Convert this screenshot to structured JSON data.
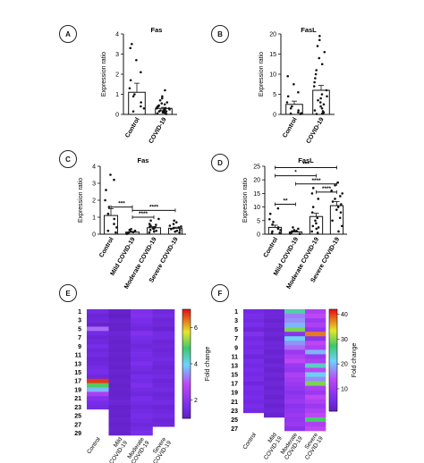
{
  "panels": {
    "A": "A",
    "B": "B",
    "C": "C",
    "D": "D",
    "E": "E",
    "F": "F"
  },
  "chart_data": [
    {
      "panel": "A",
      "type": "bar",
      "title": "Fas",
      "ylabel": "Expression ratio",
      "ylim": [
        0,
        4
      ],
      "yticks": [
        0,
        1,
        2,
        3,
        4
      ],
      "categories": [
        "Control",
        "COVID-19"
      ],
      "values": [
        1.1,
        0.3
      ],
      "errors": [
        0.45,
        0.05
      ],
      "points": [
        [
          3.5,
          3.3,
          2.7,
          2.1,
          1.7,
          1.3,
          1.0,
          0.9,
          0.6,
          0.4,
          0.3,
          0.15
        ],
        [
          1.2,
          0.9,
          0.8,
          0.7,
          0.6,
          0.55,
          0.5,
          0.45,
          0.4,
          0.4,
          0.35,
          0.3,
          0.3,
          0.25,
          0.25,
          0.2,
          0.2,
          0.15,
          0.15,
          0.1,
          0.1,
          0.05,
          0.05,
          0.02,
          0.3,
          0.2,
          0.15,
          0.1
        ]
      ]
    },
    {
      "panel": "B",
      "type": "bar",
      "title": "FasL",
      "ylabel": "Expression ratio",
      "ylim": [
        0,
        20
      ],
      "yticks": [
        0,
        5,
        10,
        15,
        20
      ],
      "categories": [
        "Control",
        "COVID-19"
      ],
      "values": [
        2.5,
        6.0
      ],
      "errors": [
        0.8,
        1.2
      ],
      "points": [
        [
          9.5,
          7.5,
          5.5,
          4.5,
          3.0,
          2.0,
          1.5,
          1.0,
          0.5,
          0.3,
          0.2,
          0.1
        ],
        [
          19.5,
          18.5,
          17,
          15.5,
          14,
          12.5,
          11,
          10,
          9,
          8,
          7,
          6,
          5,
          4.5,
          4,
          3.5,
          3,
          2.5,
          2,
          1.5,
          1,
          0.8,
          0.5,
          0.3,
          0.2,
          0.1
        ]
      ]
    },
    {
      "panel": "C",
      "type": "bar",
      "title": "Fas",
      "ylabel": "Expression ratio",
      "ylim": [
        0,
        4
      ],
      "yticks": [
        0,
        1,
        2,
        3,
        4
      ],
      "categories": [
        "Control",
        "Mild COVID-19",
        "Moderate COVID-19",
        "Severe COVID-19"
      ],
      "values": [
        1.1,
        0.12,
        0.38,
        0.35
      ],
      "errors": [
        0.4,
        0.04,
        0.07,
        0.06
      ],
      "points": [
        [
          3.5,
          3.2,
          2.6,
          2.0,
          1.6,
          1.2,
          0.9,
          0.6,
          0.4,
          0.2,
          0.1
        ],
        [
          0.3,
          0.25,
          0.2,
          0.15,
          0.12,
          0.1,
          0.08,
          0.05,
          0.03,
          0.02
        ],
        [
          0.9,
          0.8,
          0.6,
          0.55,
          0.5,
          0.45,
          0.4,
          0.35,
          0.3,
          0.25,
          0.2,
          0.15,
          0.1
        ],
        [
          0.8,
          0.7,
          0.6,
          0.5,
          0.45,
          0.4,
          0.35,
          0.3,
          0.25,
          0.2,
          0.15,
          0.1
        ]
      ],
      "brackets": [
        {
          "from": 0,
          "to": 1,
          "y": 1.6,
          "label": "***"
        },
        {
          "from": 1,
          "to": 3,
          "y": 1.4,
          "label": "****"
        },
        {
          "from": 1,
          "to": 2,
          "y": 1.0,
          "label": "****"
        }
      ]
    },
    {
      "panel": "D",
      "type": "bar",
      "title": "FasL",
      "ylabel": "Expression ratio",
      "ylim": [
        0,
        25
      ],
      "yticks": [
        0,
        5,
        10,
        15,
        20,
        25
      ],
      "categories": [
        "Control",
        "Mild COVID-19",
        "Moderate COVID-19",
        "Severe COVID-19"
      ],
      "values": [
        2.5,
        0.8,
        6.5,
        10.5
      ],
      "errors": [
        0.8,
        0.2,
        1.2,
        1.5
      ],
      "points": [
        [
          9.5,
          7.5,
          5.5,
          4.5,
          3.5,
          2.5,
          2,
          1.5,
          1,
          0.5,
          0.3
        ],
        [
          2.5,
          2,
          1.5,
          1.2,
          1,
          0.8,
          0.5,
          0.3,
          0.2,
          0.1
        ],
        [
          17,
          15,
          13,
          10,
          8,
          6,
          5,
          4,
          3,
          2.5,
          2,
          1,
          0.5
        ],
        [
          19,
          18,
          16,
          15,
          14,
          13,
          12,
          11,
          10,
          9,
          8,
          6,
          5,
          3,
          1
        ]
      ],
      "brackets": [
        {
          "from": 0,
          "to": 3,
          "y": 24.5,
          "label": "***"
        },
        {
          "from": 0,
          "to": 2,
          "y": 21.5,
          "label": "*"
        },
        {
          "from": 1,
          "to": 3,
          "y": 18.5,
          "label": "****"
        },
        {
          "from": 2,
          "to": 3,
          "y": 15.5,
          "label": "****"
        },
        {
          "from": 0,
          "to": 1,
          "y": 11,
          "label": "**"
        }
      ]
    },
    {
      "panel": "E",
      "type": "heatmap",
      "columns": [
        "Control",
        "Mild COVID-19",
        "Moderate COVID-19",
        "Severe COVID-19"
      ],
      "row_labels": [
        "1",
        "3",
        "5",
        "7",
        "9",
        "11",
        "13",
        "15",
        "17",
        "19",
        "21",
        "23",
        "25",
        "27",
        "29"
      ],
      "rows": 29,
      "colorbar_label": "Fold change",
      "colorbar_ticks": [
        2,
        4,
        6
      ],
      "vmin": 1,
      "vmax": 7,
      "values": [
        [
          1.6,
          1.2,
          1.8,
          1.5
        ],
        [
          1.4,
          1.1,
          1.9,
          1.6
        ],
        [
          1.5,
          1.3,
          1.7,
          1.4
        ],
        [
          1.3,
          1.2,
          1.6,
          1.5
        ],
        [
          3.2,
          1.2,
          1.5,
          1.3
        ],
        [
          1.6,
          1.4,
          1.9,
          1.6
        ],
        [
          1.4,
          1.3,
          1.7,
          1.6
        ],
        [
          1.5,
          1.2,
          1.6,
          1.4
        ],
        [
          1.7,
          1.3,
          1.5,
          1.5
        ],
        [
          1.5,
          1.2,
          1.6,
          1.4
        ],
        [
          1.6,
          1.3,
          1.7,
          1.5
        ],
        [
          1.4,
          1.2,
          1.6,
          1.6
        ],
        [
          1.5,
          1.3,
          1.8,
          1.5
        ],
        [
          1.6,
          1.2,
          1.6,
          1.4
        ],
        [
          1.7,
          1.3,
          1.5,
          1.5
        ],
        [
          1.5,
          1.2,
          1.7,
          1.6
        ],
        [
          6.8,
          1.3,
          1.6,
          1.4
        ],
        [
          5.0,
          1.2,
          1.8,
          1.5
        ],
        [
          3.8,
          1.3,
          1.6,
          1.6
        ],
        [
          2.6,
          1.2,
          1.5,
          1.4
        ],
        [
          1.9,
          1.3,
          1.7,
          1.5
        ],
        [
          1.7,
          1.4,
          1.6,
          1.6
        ],
        [
          1.6,
          1.2,
          1.5,
          1.4
        ],
        [
          null,
          1.3,
          1.6,
          1.5
        ],
        [
          null,
          1.2,
          1.7,
          1.6
        ],
        [
          null,
          1.3,
          1.6,
          1.4
        ],
        [
          null,
          1.2,
          1.5,
          1.5
        ],
        [
          null,
          1.3,
          1.6,
          null
        ],
        [
          null,
          1.2,
          1.7,
          null
        ]
      ]
    },
    {
      "panel": "F",
      "type": "heatmap",
      "columns": [
        "Control",
        "Mild COVID-19",
        "Moderate COVID-19",
        "Severe COVID-19"
      ],
      "row_labels": [
        "1",
        "3",
        "5",
        "7",
        "9",
        "11",
        "13",
        "15",
        "17",
        "19",
        "21",
        "23",
        "25",
        "27"
      ],
      "rows": 27,
      "colorbar_label": "Fold change",
      "colorbar_ticks": [
        10,
        20,
        30,
        40
      ],
      "vmin": 1,
      "vmax": 42,
      "values": [
        [
          5,
          4,
          25,
          12
        ],
        [
          6,
          4,
          17,
          14
        ],
        [
          5,
          3,
          18,
          10
        ],
        [
          6,
          4,
          20,
          12
        ],
        [
          4,
          3,
          30,
          9
        ],
        [
          7,
          4,
          8,
          38
        ],
        [
          5,
          3,
          22,
          8
        ],
        [
          6,
          4,
          18,
          14
        ],
        [
          5,
          4,
          16,
          12
        ],
        [
          6,
          3,
          10,
          20
        ],
        [
          4,
          4,
          12,
          10
        ],
        [
          6,
          3,
          14,
          12
        ],
        [
          5,
          4,
          10,
          24
        ],
        [
          6,
          3,
          9,
          14
        ],
        [
          5,
          4,
          12,
          22
        ],
        [
          6,
          3,
          11,
          18
        ],
        [
          4,
          4,
          10,
          30
        ],
        [
          6,
          3,
          9,
          12
        ],
        [
          5,
          4,
          8,
          10
        ],
        [
          6,
          3,
          9,
          14
        ],
        [
          5,
          4,
          10,
          12
        ],
        [
          6,
          3,
          8,
          10
        ],
        [
          5,
          4,
          9,
          12
        ],
        [
          null,
          3,
          10,
          14
        ],
        [
          null,
          null,
          9,
          28
        ],
        [
          null,
          null,
          10,
          12
        ],
        [
          null,
          null,
          8,
          14
        ]
      ]
    }
  ]
}
